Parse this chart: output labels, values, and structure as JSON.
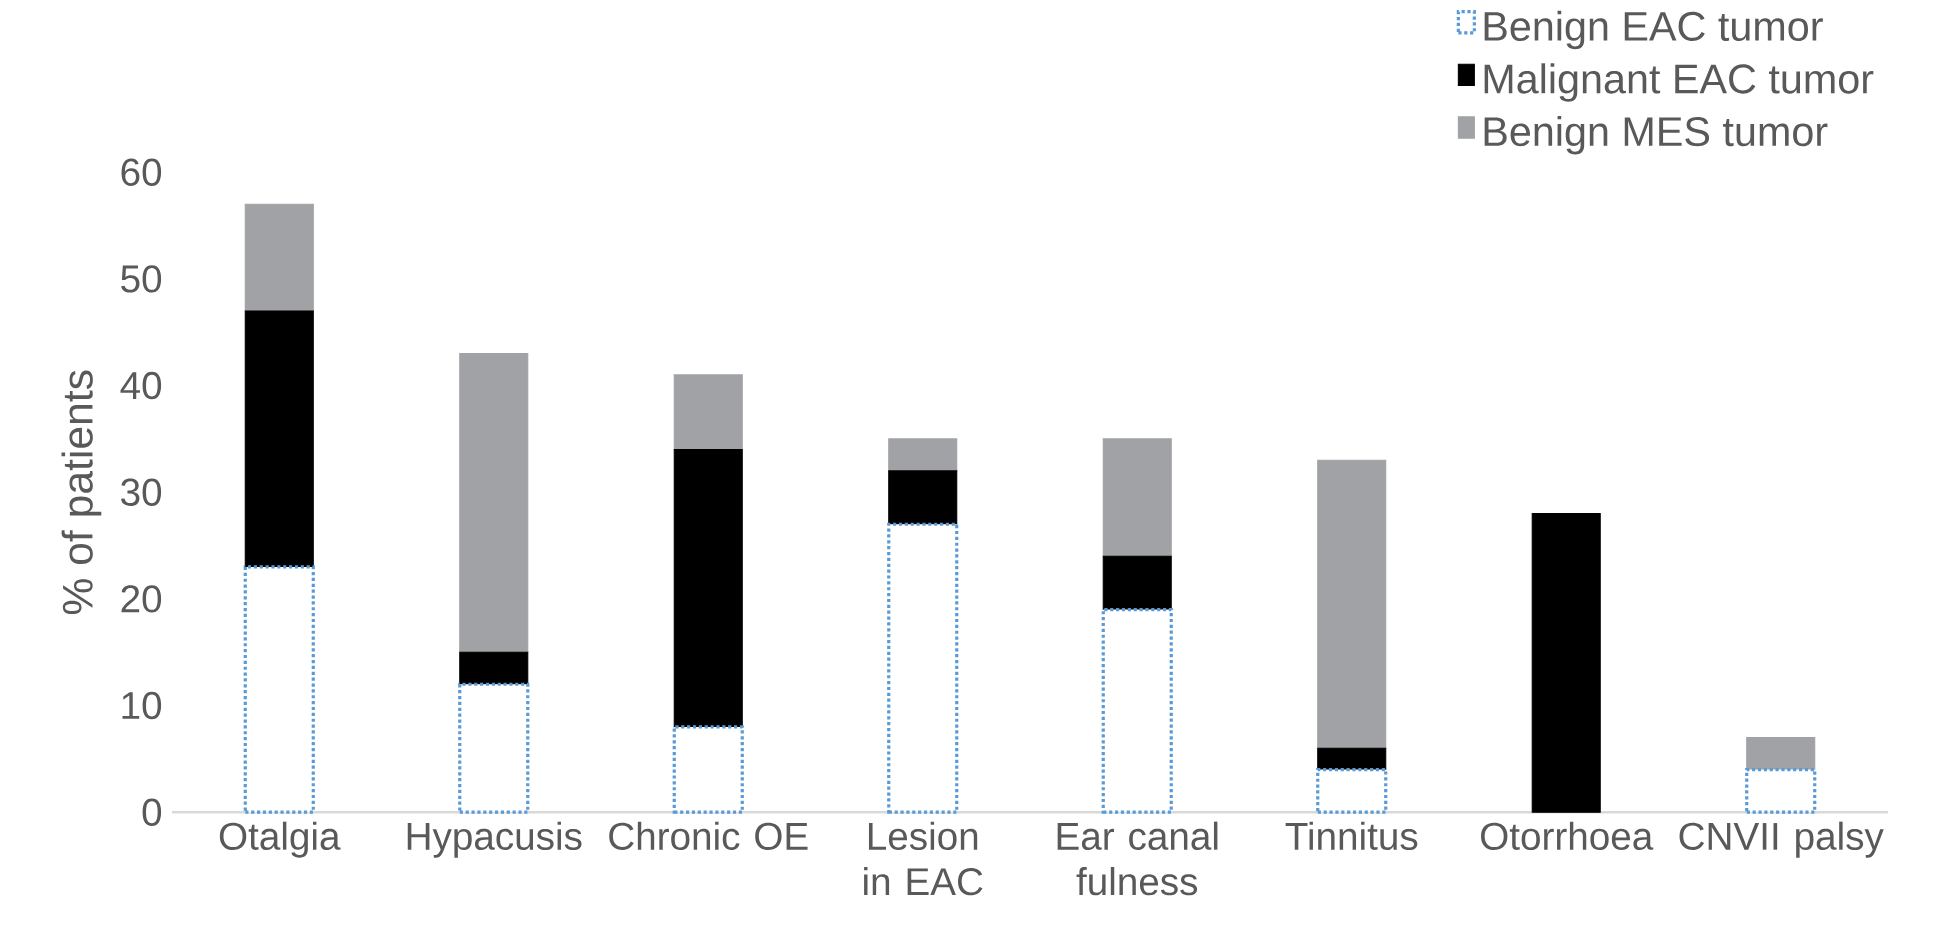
{
  "chart_data": {
    "type": "bar",
    "stacked": true,
    "ylabel": "% of patients",
    "categories": [
      "Otalgia",
      "Hypacusis",
      "Chronic OE",
      "Lesion in EAC",
      "Ear canal fulness",
      "Tinnitus",
      "Otorrhoea",
      "CNVII palsy"
    ],
    "series": [
      {
        "name": "Benign EAC tumor",
        "color": "#5b9bd5",
        "line_style": "dotted",
        "values": [
          23,
          12,
          8,
          27,
          19,
          4,
          0,
          4
        ]
      },
      {
        "name": "Malignant EAC tumor",
        "color": "#000000",
        "values": [
          24,
          3,
          26,
          5,
          5,
          2,
          28,
          0
        ]
      },
      {
        "name": "Benign MES tumor",
        "color": "#a0a2a5",
        "values": [
          10,
          28,
          7,
          3,
          11,
          27,
          0,
          3
        ]
      }
    ],
    "ylim": [
      0,
      60
    ],
    "yticks": [
      0,
      10,
      20,
      30,
      40,
      50,
      60
    ],
    "grid": false,
    "legend": "top right"
  }
}
